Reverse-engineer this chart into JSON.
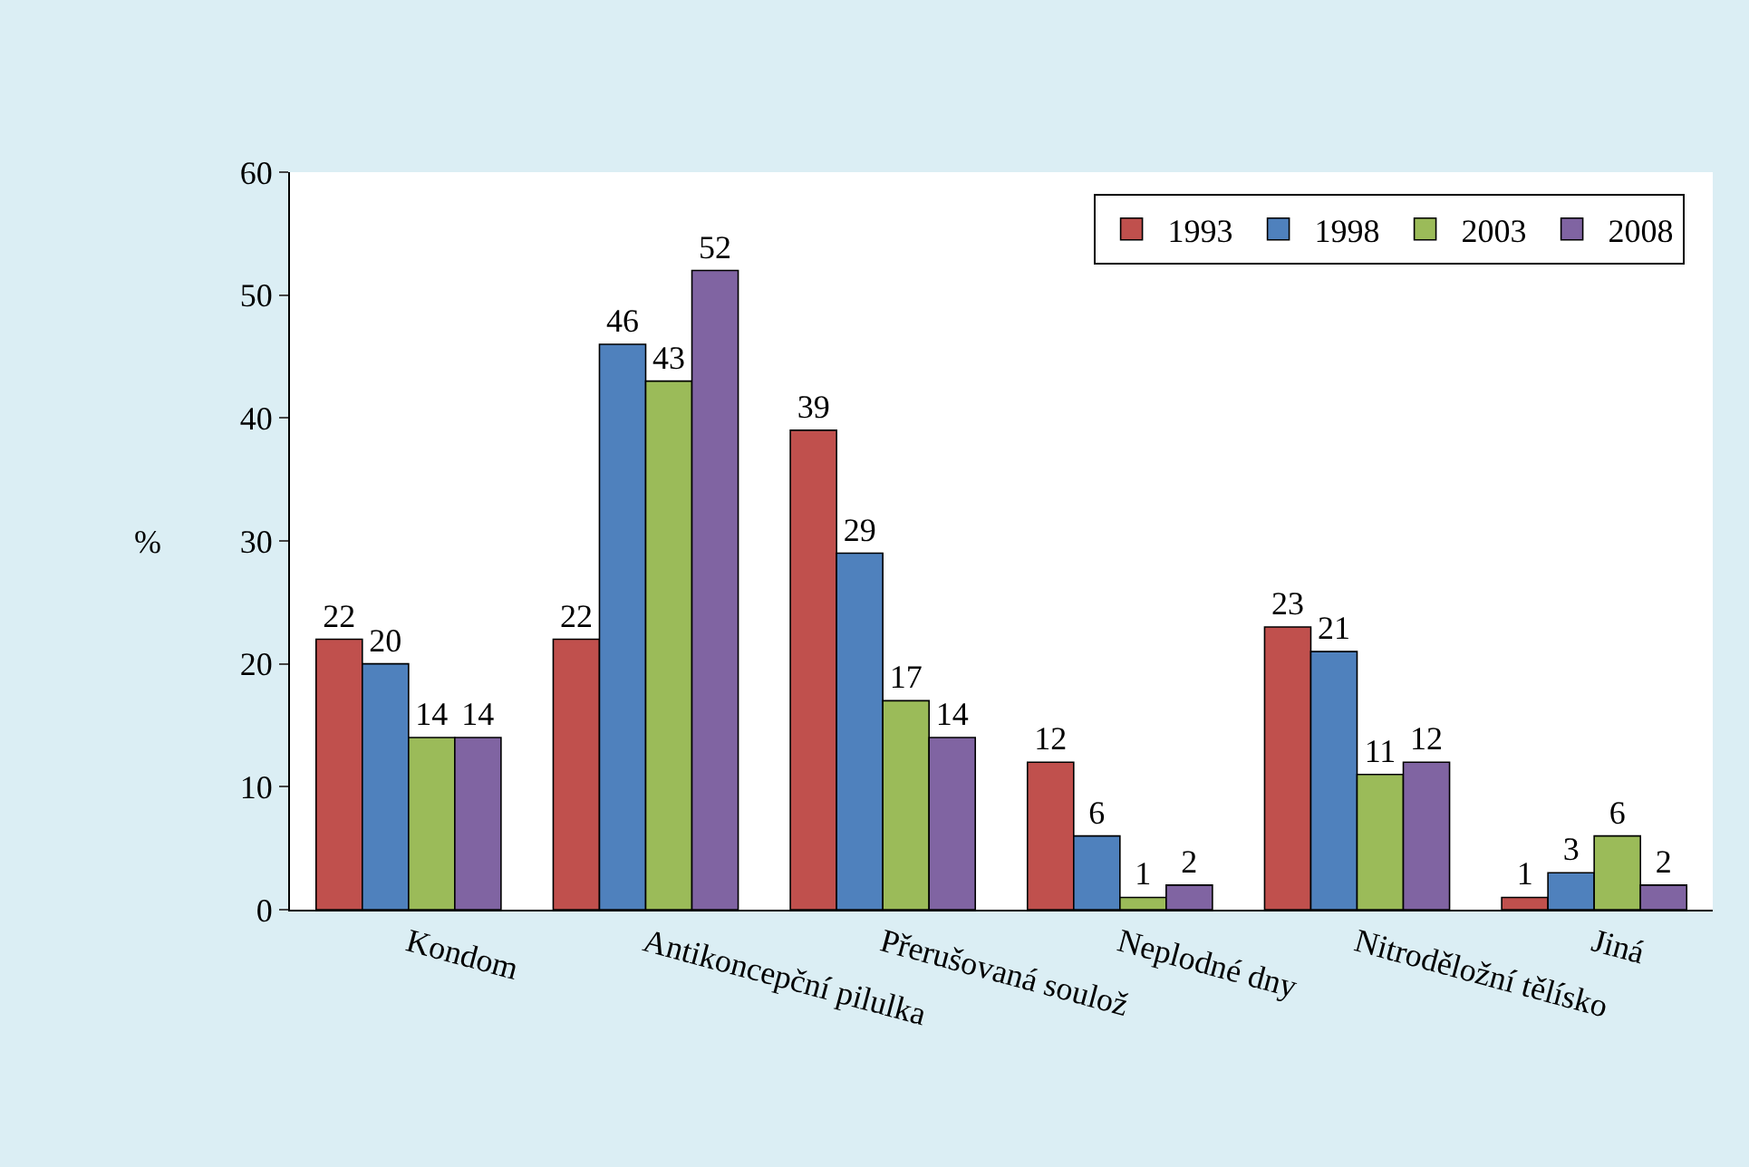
{
  "chart_data": {
    "type": "bar",
    "ylabel": "%",
    "categories": [
      "Kondom",
      "Antikoncepční pilulka",
      "Přerušovaná soulož",
      "Neplodné dny",
      "Nitroděložní tělísko",
      "Jiná"
    ],
    "series": [
      {
        "name": "1993",
        "color": "#c0504d",
        "values": [
          22,
          22,
          39,
          12,
          23,
          1
        ]
      },
      {
        "name": "1998",
        "color": "#4f81bd",
        "values": [
          20,
          46,
          29,
          6,
          21,
          3
        ]
      },
      {
        "name": "2003",
        "color": "#9bbb59",
        "values": [
          14,
          43,
          17,
          1,
          11,
          6
        ]
      },
      {
        "name": "2008",
        "color": "#8064a2",
        "values": [
          14,
          52,
          14,
          2,
          12,
          2
        ]
      }
    ],
    "ylim": [
      0,
      60
    ],
    "yticks": [
      0,
      10,
      20,
      30,
      40,
      50,
      60
    ],
    "data_labels": true,
    "legend": "top right"
  }
}
